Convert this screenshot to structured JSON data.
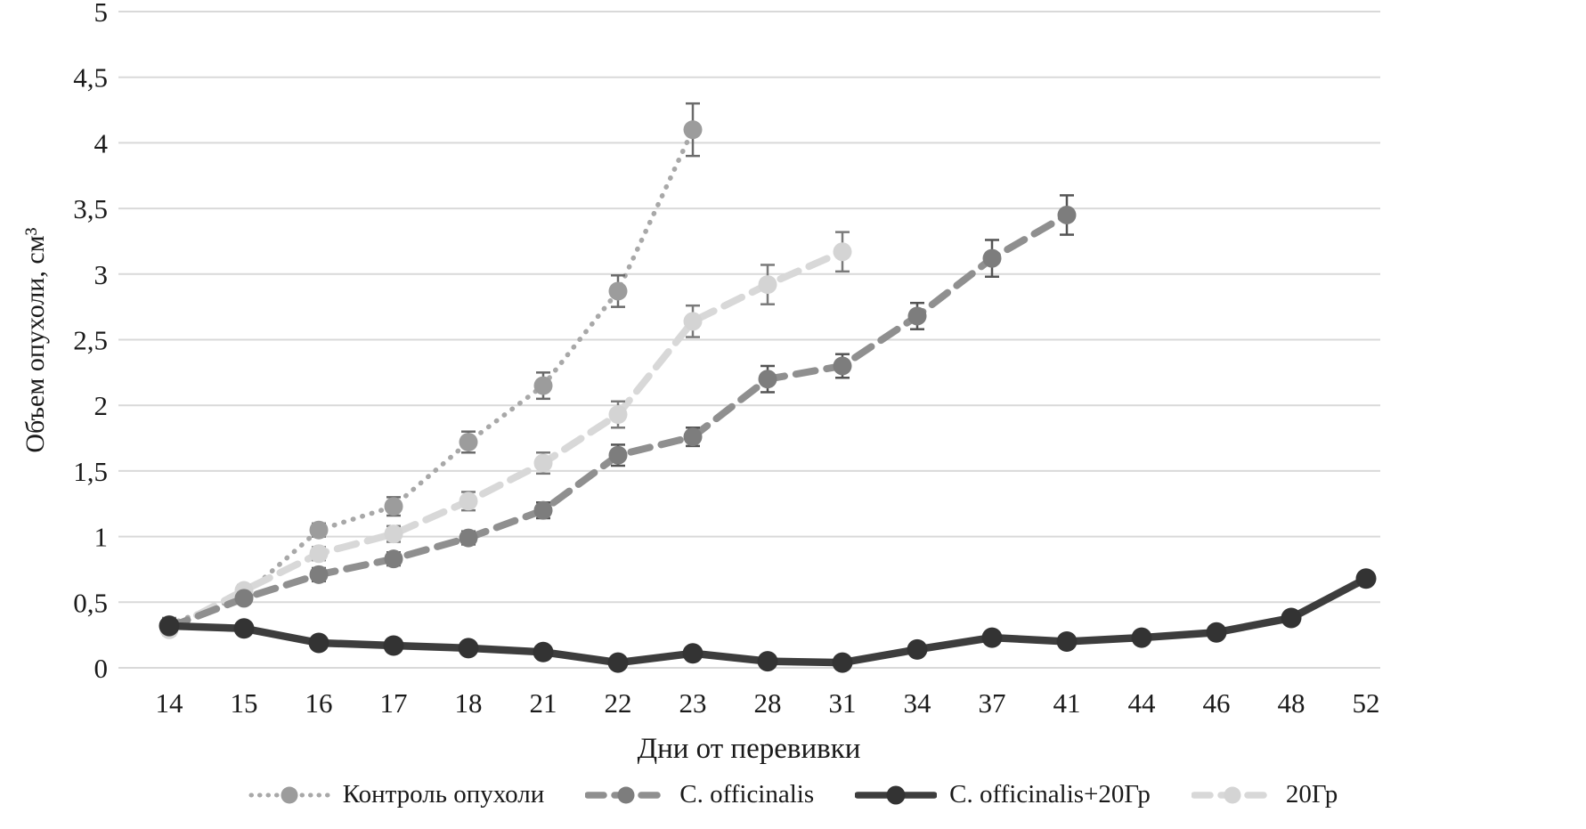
{
  "chart_data": {
    "type": "line",
    "title": "",
    "xlabel": "Дни от перевивки",
    "ylabel": "Объем опухоли, см³",
    "x_categories": [
      "14",
      "15",
      "16",
      "17",
      "18",
      "21",
      "22",
      "23",
      "28",
      "31",
      "34",
      "37",
      "41",
      "44",
      "46",
      "48",
      "52"
    ],
    "y_tick_labels": [
      "0",
      "0,5",
      "1",
      "1,5",
      "2",
      "2,5",
      "3",
      "3,5",
      "4",
      "4,5",
      "5"
    ],
    "y_tick_values": [
      0,
      0.5,
      1,
      1.5,
      2,
      2.5,
      3,
      3.5,
      4,
      4.5,
      5
    ],
    "ylim": [
      0,
      5
    ],
    "grid": true,
    "gridline_color": "#d9d9d9",
    "legend_position": "bottom",
    "series": [
      {
        "name": "Контроль опухоли",
        "style": "dotted",
        "color": "#a8a8a8",
        "marker_color": "#9c9c9c",
        "errorbar_color": "#6b6b6b",
        "values": [
          0.33,
          0.55,
          1.05,
          1.23,
          1.72,
          2.15,
          2.87,
          4.1
        ],
        "errors": [
          0.05,
          0.04,
          0.05,
          0.07,
          0.08,
          0.1,
          0.12,
          0.2
        ]
      },
      {
        "name": "C. officinalis",
        "style": "dashed",
        "color": "#8f8f8f",
        "marker_color": "#7d7d7d",
        "errorbar_color": "#545454",
        "values": [
          0.31,
          0.53,
          0.71,
          0.83,
          0.99,
          1.2,
          1.62,
          1.76,
          2.2,
          2.3,
          2.68,
          3.12,
          3.45
        ],
        "errors": [
          0.03,
          0.04,
          0.05,
          0.05,
          0.05,
          0.06,
          0.08,
          0.07,
          0.1,
          0.09,
          0.1,
          0.14,
          0.15
        ]
      },
      {
        "name": "C. officinalis+20Гр",
        "style": "solid",
        "color": "#3d3d3d",
        "marker_color": "#333333",
        "errorbar_color": "#3d3d3d",
        "values": [
          0.32,
          0.3,
          0.19,
          0.17,
          0.15,
          0.12,
          0.04,
          0.11,
          0.05,
          0.04,
          0.14,
          0.23,
          0.2,
          0.23,
          0.27,
          0.38,
          0.68
        ],
        "errors": [
          0,
          0,
          0,
          0,
          0,
          0,
          0,
          0,
          0,
          0,
          0,
          0,
          0,
          0,
          0,
          0,
          0
        ]
      },
      {
        "name": "20Гр",
        "style": "dashed",
        "color": "#d8d8d8",
        "marker_color": "#d4d4d4",
        "errorbar_color": "#7a7a7a",
        "values": [
          0.29,
          0.59,
          0.87,
          1.02,
          1.27,
          1.56,
          1.93,
          2.64,
          2.92,
          3.17
        ],
        "errors": [
          0.04,
          0.04,
          0.05,
          0.06,
          0.07,
          0.08,
          0.1,
          0.12,
          0.15,
          0.15
        ]
      }
    ]
  }
}
